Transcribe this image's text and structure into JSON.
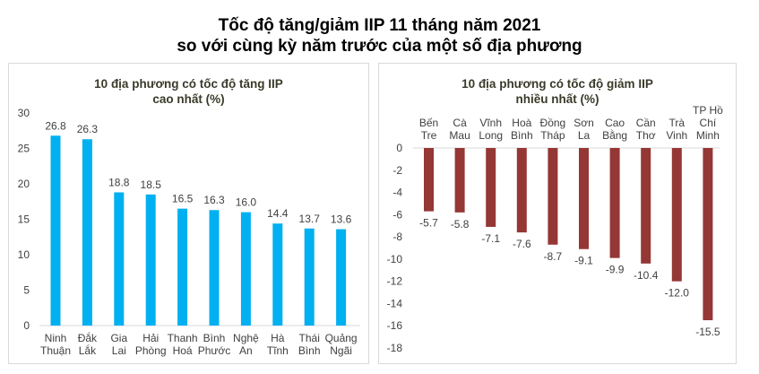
{
  "title": {
    "line1": "Tốc độ tăng/giảm IIP 11 tháng năm 2021",
    "line2": "so với cùng kỳ năm trước của một số địa phương"
  },
  "colors": {
    "increase": "#00b0f0",
    "decrease": "#953735",
    "axis": "#d9d9d9",
    "border": "#d9d9d9"
  },
  "chart_data": [
    {
      "type": "bar",
      "title": "10 địa phương có tốc độ tăng IIP cao nhất  (%)",
      "title_lines": [
        "10 địa phương có tốc độ tăng IIP",
        "cao nhất  (%)"
      ],
      "categories": [
        "Ninh Thuận",
        "Đắk Lắk",
        "Gia Lai",
        "Hải Phòng",
        "Thanh Hoá",
        "Bình Phước",
        "Nghệ An",
        "Hà Tĩnh",
        "Thái Bình",
        "Quảng Ngãi"
      ],
      "category_lines": [
        [
          "Ninh",
          "Thuận"
        ],
        [
          "Đắk",
          "Lắk"
        ],
        [
          "Gia",
          "Lai"
        ],
        [
          "Hải",
          "Phòng"
        ],
        [
          "Thanh",
          "Hoá"
        ],
        [
          "Bình",
          "Phước"
        ],
        [
          "Nghệ",
          "An"
        ],
        [
          "Hà",
          "Tĩnh"
        ],
        [
          "Thái",
          "Bình"
        ],
        [
          "Quảng",
          "Ngãi"
        ]
      ],
      "values": [
        26.8,
        26.3,
        18.8,
        18.5,
        16.5,
        16.3,
        16.0,
        14.4,
        13.7,
        13.6
      ],
      "value_labels": [
        "26.8",
        "26.3",
        "18.8",
        "18.5",
        "16.5",
        "16.3",
        "16.0",
        "14.4",
        "13.7",
        "13.6"
      ],
      "xlabel": "",
      "ylabel": "",
      "ylim": [
        0,
        30
      ],
      "yticks": [
        0,
        5,
        10,
        15,
        20,
        25,
        30
      ],
      "grid": false,
      "legend": null,
      "color": "#00b0f0"
    },
    {
      "type": "bar",
      "title": "10 địa phương có tốc độ giảm IIP nhiều nhất (%)",
      "title_lines": [
        "10 địa phương có tốc độ giảm IIP",
        "nhiều nhất (%)"
      ],
      "categories": [
        "Bến Tre",
        "Cà Mau",
        "Vĩnh Long",
        "Hoà Bình",
        "Đồng Tháp",
        "Sơn La",
        "Cao Bằng",
        "Cần Thơ",
        "Trà Vinh",
        "TP Hồ Chí Minh"
      ],
      "category_lines": [
        [
          "Bến",
          "Tre"
        ],
        [
          "Cà",
          "Mau"
        ],
        [
          "Vĩnh",
          "Long"
        ],
        [
          "Hoà",
          "Bình"
        ],
        [
          "Đồng",
          "Tháp"
        ],
        [
          "Sơn",
          "La"
        ],
        [
          "Cao",
          "Bằng"
        ],
        [
          "Cần",
          "Thơ"
        ],
        [
          "Trà",
          "Vinh"
        ],
        [
          "TP Hồ",
          "Chí",
          "Minh"
        ]
      ],
      "values": [
        -5.7,
        -5.8,
        -7.1,
        -7.6,
        -8.7,
        -9.1,
        -9.9,
        -10.4,
        -12.0,
        -15.5
      ],
      "value_labels": [
        "-5.7",
        "-5.8",
        "-7.1",
        "-7.6",
        "-8.7",
        "-9.1",
        "-9.9",
        "-10.4",
        "-12.0",
        "-15.5"
      ],
      "xlabel": "",
      "ylabel": "",
      "ylim": [
        -18,
        0
      ],
      "yticks": [
        0,
        -2,
        -4,
        -6,
        -8,
        -10,
        -12,
        -14,
        -16,
        -18
      ],
      "grid": false,
      "legend": null,
      "category_axis_position": "top",
      "color": "#953735"
    }
  ]
}
